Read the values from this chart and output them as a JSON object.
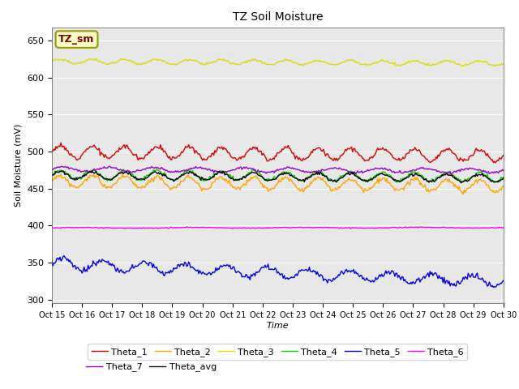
{
  "title": "TZ Soil Moisture",
  "xlabel": "Time",
  "ylabel": "Soil Moisture (mV)",
  "ylim": [
    295,
    668
  ],
  "yticks": [
    300,
    350,
    400,
    450,
    500,
    550,
    600,
    650
  ],
  "n_points": 450,
  "background_color": "#e8e8e8",
  "fig_color": "#ffffff",
  "series_order": [
    "Theta_1",
    "Theta_2",
    "Theta_3",
    "Theta_4",
    "Theta_5",
    "Theta_6",
    "Theta_7",
    "Theta_avg"
  ],
  "series": {
    "Theta_1": {
      "color": "#dd0000",
      "base": 500,
      "amp": 8,
      "freq": 14,
      "trend": -0.012,
      "noise": 1.5
    },
    "Theta_2": {
      "color": "#ffa500",
      "base": 460,
      "amp": 8,
      "freq": 14,
      "trend": -0.015,
      "noise": 1.5
    },
    "Theta_3": {
      "color": "#dddd00",
      "base": 622,
      "amp": 3,
      "freq": 14,
      "trend": -0.006,
      "noise": 0.8
    },
    "Theta_4": {
      "color": "#00cc00",
      "base": 469,
      "amp": 6,
      "freq": 14,
      "trend": -0.008,
      "noise": 1.2
    },
    "Theta_5": {
      "color": "#0000ee",
      "base": 349,
      "amp": 7,
      "freq": 11,
      "trend": -0.055,
      "noise": 2.0
    },
    "Theta_6": {
      "color": "#ff00ff",
      "base": 397,
      "amp": 0.5,
      "freq": 4,
      "trend": 0.001,
      "noise": 0.3
    },
    "Theta_7": {
      "color": "#9900cc",
      "base": 476,
      "amp": 3,
      "freq": 10,
      "trend": -0.004,
      "noise": 0.8
    },
    "Theta_avg": {
      "color": "#000000",
      "base": 468,
      "amp": 5,
      "freq": 14,
      "trend": -0.009,
      "noise": 1.0
    }
  },
  "xtick_labels": [
    "Oct 15",
    "Oct 16",
    "Oct 17",
    "Oct 18",
    "Oct 19",
    "Oct 20",
    "Oct 21",
    "Oct 22",
    "Oct 23",
    "Oct 24",
    "Oct 25",
    "Oct 26",
    "Oct 27",
    "Oct 28",
    "Oct 29",
    "Oct 30"
  ],
  "legend_label": "TZ_sm",
  "legend_bg": "#ffffcc",
  "legend_edge": "#999900",
  "legend_text_color": "#880000",
  "legend_rows": [
    [
      "Theta_1",
      "Theta_2",
      "Theta_3",
      "Theta_4",
      "Theta_5",
      "Theta_6"
    ],
    [
      "Theta_7",
      "Theta_avg"
    ]
  ]
}
